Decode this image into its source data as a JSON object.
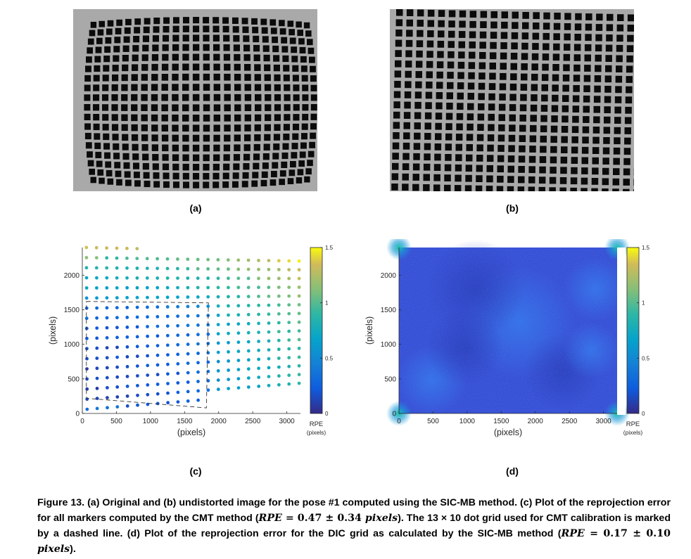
{
  "panels": {
    "a": {
      "label": "(a)"
    },
    "b": {
      "label": "(b)"
    },
    "c": {
      "label": "(c)"
    },
    "d": {
      "label": "(d)"
    }
  },
  "chart_data": [
    {
      "panel": "c",
      "type": "scatter",
      "title": "",
      "xlabel": "(pixels)",
      "ylabel": "(pixels)",
      "xlim": [
        0,
        3200
      ],
      "ylim": [
        0,
        2400
      ],
      "xticks": [
        0,
        500,
        1000,
        1500,
        2000,
        2500,
        3000
      ],
      "yticks": [
        0,
        500,
        1000,
        1500,
        2000
      ],
      "colorbar": {
        "label": "RPE",
        "unit": "(pixels)",
        "ticks": [
          0,
          0.5,
          1,
          1.5
        ],
        "range": [
          0,
          1.5
        ],
        "colormap": "parula"
      },
      "dashed_region": {
        "corners_data": [
          [
            60,
            1620
          ],
          [
            1850,
            1600
          ],
          [
            1820,
            80
          ],
          [
            60,
            220
          ]
        ]
      },
      "grid": false
    },
    {
      "panel": "d",
      "type": "heatmap",
      "title": "",
      "xlabel": "(pixels)",
      "ylabel": "(pixels)",
      "xlim": [
        0,
        3200
      ],
      "ylim": [
        0,
        2400
      ],
      "xticks": [
        0,
        500,
        1000,
        1500,
        2000,
        2500,
        3000
      ],
      "yticks": [
        0,
        500,
        1000,
        1500,
        2000
      ],
      "colorbar": {
        "label": "RPE",
        "unit": "(pixels)",
        "ticks": [
          0,
          0.5,
          1,
          1.5
        ],
        "range": [
          0,
          1.5
        ],
        "colormap": "parula"
      },
      "grid": false
    }
  ],
  "caption": {
    "part1": "Figure 13. (a) Original and (b) undistorted image for the pose #1 computed using the SIC-MB method. (c) Plot of the reprojection error for all markers computed by the CMT method (",
    "rpe1_var": "RPE",
    "rpe1_eq": " = 0.47 ± 0.34 ",
    "rpe1_unit": "pixels",
    "part2": "). The 13 × 10 dot grid used for CMT calibration is marked by a dashed line. (d) Plot of the reprojection error for the DIC grid as calculated by the SIC-MB method (",
    "rpe2_var": "RPE",
    "rpe2_eq": " = 0.17 ± 0.10 ",
    "rpe2_unit": "pixels",
    "part3": ")."
  }
}
